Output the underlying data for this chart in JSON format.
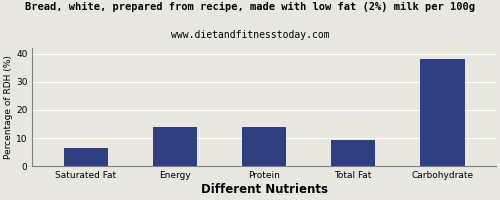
{
  "title": "Bread, white, prepared from recipe, made with low fat (2%) milk per 100g",
  "subtitle": "www.dietandfitnesstoday.com",
  "xlabel": "Different Nutrients",
  "ylabel": "Percentage of RDH (%)",
  "categories": [
    "Saturated Fat",
    "Energy",
    "Protein",
    "Total Fat",
    "Carbohydrate"
  ],
  "values": [
    6.5,
    14.0,
    14.0,
    9.2,
    38.0
  ],
  "bar_color": "#2E4080",
  "ylim": [
    0,
    42
  ],
  "yticks": [
    0,
    10,
    20,
    30,
    40
  ],
  "title_fontsize": 7.5,
  "subtitle_fontsize": 7.0,
  "xlabel_fontsize": 8.5,
  "ylabel_fontsize": 6.5,
  "tick_fontsize": 6.5,
  "background_color": "#e8e8e0"
}
